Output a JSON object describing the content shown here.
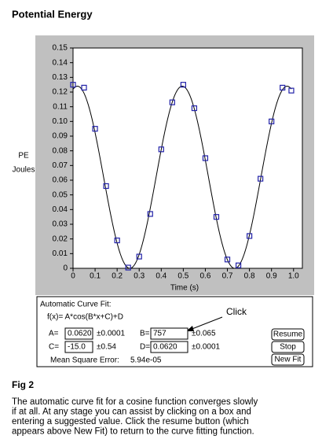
{
  "title": "Potential Energy",
  "chart_data": {
    "type": "scatter",
    "x_label": "Time (s)",
    "y_label": [
      "PE",
      "Joules"
    ],
    "x": [
      0,
      0.05,
      0.1,
      0.15,
      0.2,
      0.25,
      0.3,
      0.35,
      0.4,
      0.45,
      0.5,
      0.55,
      0.6,
      0.65,
      0.7,
      0.75,
      0.8,
      0.85,
      0.9,
      0.95,
      0.99
    ],
    "values": [
      0.125,
      0.123,
      0.095,
      0.056,
      0.019,
      0.0005,
      0.008,
      0.037,
      0.081,
      0.113,
      0.125,
      0.109,
      0.075,
      0.035,
      0.006,
      0.002,
      0.022,
      0.061,
      0.1,
      0.123,
      0.121
    ],
    "color": "#2222a8",
    "marker": "square",
    "xlim": [
      0,
      1.04
    ],
    "ylim": [
      0,
      0.15
    ],
    "xticks": [
      0,
      0.1,
      0.2,
      0.3,
      0.4,
      0.5,
      0.6,
      0.7,
      0.8,
      0.9,
      {
        "value": 1,
        "label": "1.0"
      }
    ],
    "yticks": [
      0,
      0.01,
      0.02,
      0.03,
      0.04,
      0.05,
      0.06,
      0.07,
      0.08,
      0.09,
      {
        "value": 0.1,
        "label": "0.10"
      },
      0.11,
      0.12,
      0.13,
      0.14,
      0.15
    ]
  },
  "fit_panel": {
    "title": "Automatic Curve Fit:",
    "formula": "f(x)=  A*cos(B*x+C)+D",
    "params": [
      {
        "name": "A=",
        "value": {
          "value": 0.062,
          "label": "0.0620"
        },
        "error": "±0.0001"
      },
      {
        "name": "B=",
        "value": 757,
        "error": "±0.065"
      },
      {
        "name": "C=",
        "value": {
          "value": -15,
          "label": "-15.0"
        },
        "error": "±0.54"
      },
      {
        "name": "D=",
        "value": {
          "value": 0.062,
          "label": "0.0620"
        },
        "error": "±0.0001"
      }
    ],
    "mse_label": "Mean Square Error:",
    "mse": "5.94e-05",
    "buttons": [
      "Resume",
      "Stop",
      "New Fit"
    ],
    "callout": "Click"
  },
  "caption": {
    "heading": "Fig 2",
    "lines": [
      "The automatic curve fit for a cosine function converges slowly",
      "if at all. At any stage you can assist by clicking on a box and",
      "entering a suggested value. Click the resume button (which",
      "appears above New Fit) to return to the curve fitting function."
    ]
  }
}
